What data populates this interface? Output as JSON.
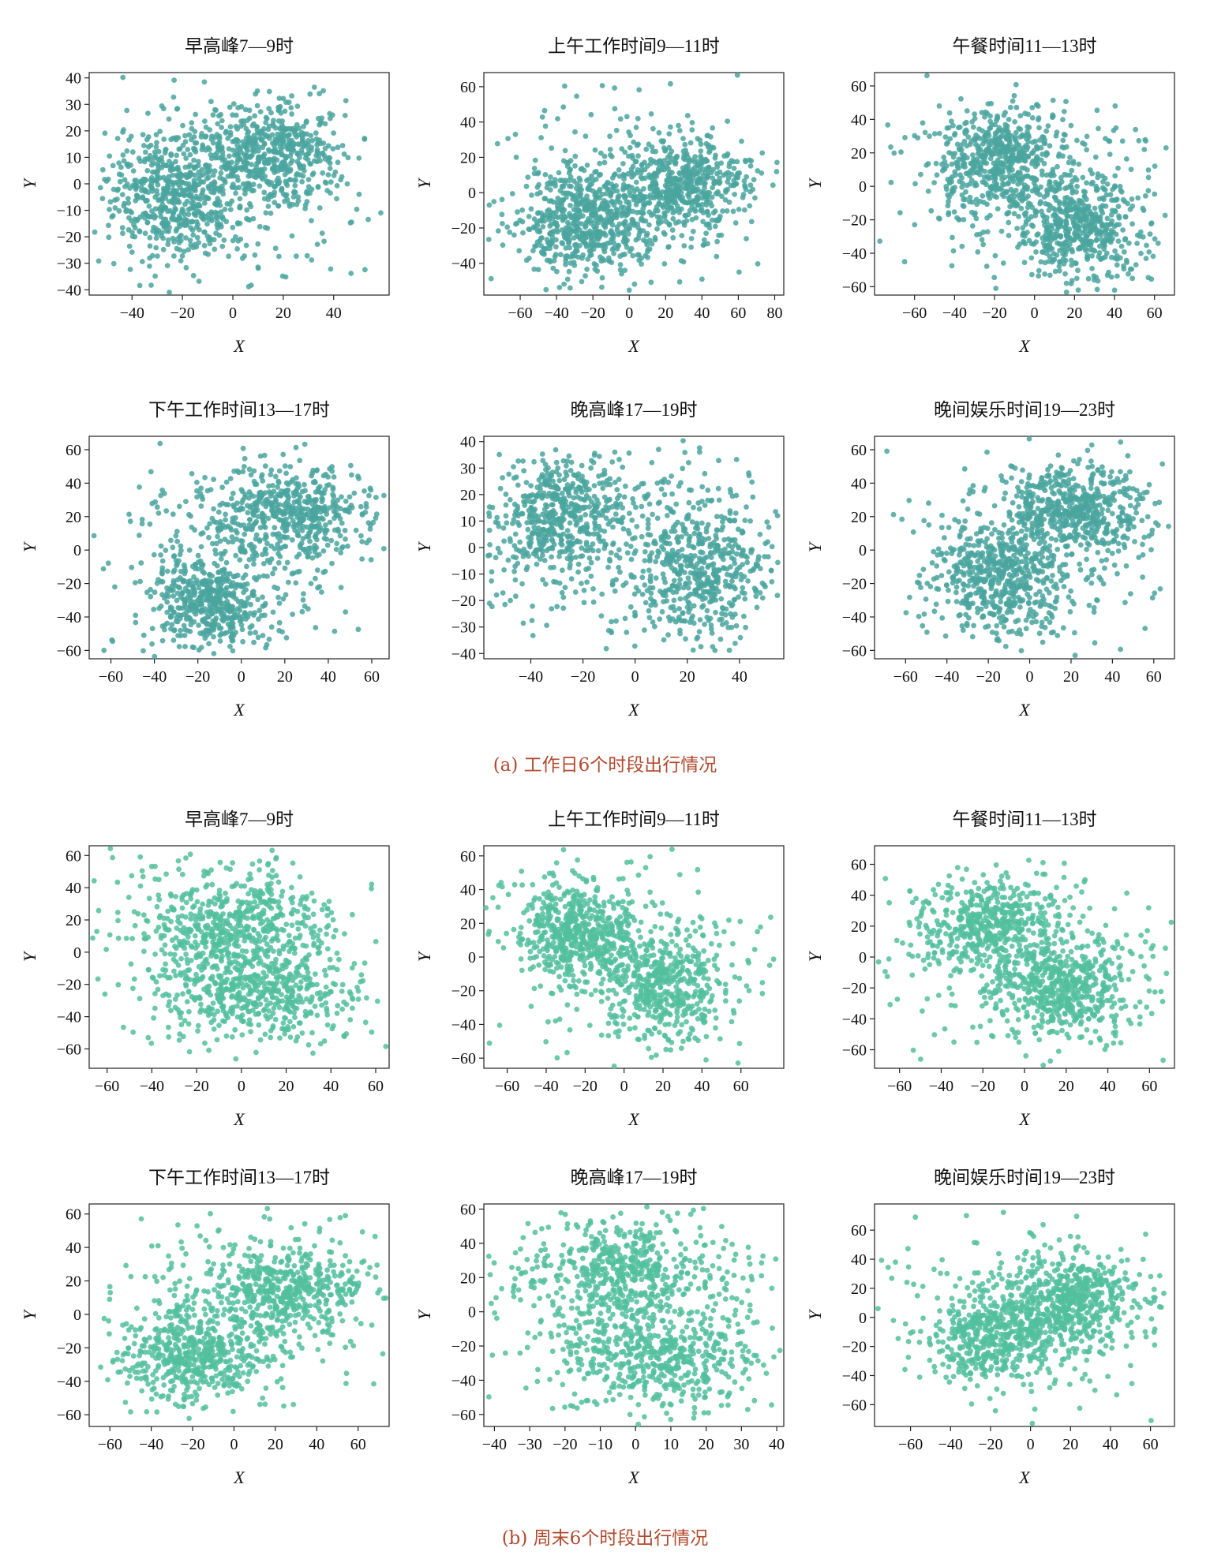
{
  "groups": [
    {
      "caption": "(a) 工作日6个时段出行情况",
      "color": "#4aa59f",
      "panels": [
        {
          "title": "早高峰7—9时",
          "xlabel": "X",
          "ylabel": "Y",
          "xlim": [
            -57,
            62
          ],
          "ylim": [
            -42,
            42
          ],
          "xticks": [
            -40,
            -20,
            0,
            20,
            40
          ],
          "yticks": [
            40,
            30,
            20,
            10,
            0,
            -10,
            -20,
            -30,
            -40
          ],
          "clusters": [
            {
              "cx": -22,
              "cy": -4,
              "sx": 13,
              "sy": 12,
              "n": 520
            },
            {
              "cx": 16,
              "cy": 12,
              "sx": 13,
              "sy": 9,
              "n": 460
            },
            {
              "cx": 0,
              "cy": 0,
              "sx": 28,
              "sy": 19,
              "n": 260
            }
          ]
        },
        {
          "title": "上午工作时间9—11时",
          "xlabel": "X",
          "ylabel": "Y",
          "xlim": [
            -80,
            85
          ],
          "ylim": [
            -58,
            68
          ],
          "xticks": [
            -60,
            -40,
            -20,
            0,
            20,
            40,
            60,
            80
          ],
          "yticks": [
            60,
            40,
            20,
            0,
            -20,
            -40
          ],
          "clusters": [
            {
              "cx": -25,
              "cy": -18,
              "sx": 16,
              "sy": 14,
              "n": 480
            },
            {
              "cx": 30,
              "cy": 5,
              "sx": 17,
              "sy": 13,
              "n": 460
            },
            {
              "cx": 0,
              "cy": 0,
              "sx": 35,
              "sy": 26,
              "n": 300
            }
          ]
        },
        {
          "title": "午餐时间11—13时",
          "xlabel": "X",
          "ylabel": "Y",
          "xlim": [
            -80,
            70
          ],
          "ylim": [
            -65,
            68
          ],
          "xticks": [
            -60,
            -40,
            -20,
            0,
            20,
            40,
            60
          ],
          "yticks": [
            60,
            40,
            20,
            0,
            -20,
            -40,
            -60
          ],
          "clusters": [
            {
              "cx": -18,
              "cy": 15,
              "sx": 16,
              "sy": 15,
              "n": 460
            },
            {
              "cx": 22,
              "cy": -25,
              "sx": 16,
              "sy": 15,
              "n": 480
            },
            {
              "cx": 0,
              "cy": 0,
              "sx": 33,
              "sy": 28,
              "n": 260
            }
          ]
        },
        {
          "title": "下午工作时间13—17时",
          "xlabel": "X",
          "ylabel": "Y",
          "xlim": [
            -70,
            68
          ],
          "ylim": [
            -65,
            68
          ],
          "xticks": [
            -60,
            -40,
            -20,
            0,
            20,
            40,
            60
          ],
          "yticks": [
            60,
            40,
            20,
            0,
            -20,
            -40,
            -60
          ],
          "clusters": [
            {
              "cx": -15,
              "cy": -32,
              "sx": 13,
              "sy": 13,
              "n": 430
            },
            {
              "cx": 22,
              "cy": 22,
              "sx": 18,
              "sy": 13,
              "n": 470
            },
            {
              "cx": 0,
              "cy": 0,
              "sx": 32,
              "sy": 28,
              "n": 260
            }
          ]
        },
        {
          "title": "晚高峰17—19时",
          "xlabel": "X",
          "ylabel": "Y",
          "xlim": [
            -58,
            57
          ],
          "ylim": [
            -42,
            42
          ],
          "xticks": [
            -40,
            -20,
            0,
            20,
            40
          ],
          "yticks": [
            40,
            30,
            20,
            10,
            0,
            -10,
            -20,
            -30,
            -40
          ],
          "clusters": [
            {
              "cx": -28,
              "cy": 12,
              "sx": 13,
              "sy": 11,
              "n": 480
            },
            {
              "cx": 25,
              "cy": -8,
              "sx": 14,
              "sy": 13,
              "n": 480
            },
            {
              "cx": 0,
              "cy": 0,
              "sx": 30,
              "sy": 20,
              "n": 260
            }
          ]
        },
        {
          "title": "晚间娱乐时间19—23时",
          "xlabel": "X",
          "ylabel": "Y",
          "xlim": [
            -75,
            70
          ],
          "ylim": [
            -65,
            68
          ],
          "xticks": [
            -60,
            -40,
            -20,
            0,
            20,
            40,
            60
          ],
          "yticks": [
            60,
            40,
            20,
            0,
            -20,
            -40,
            -60
          ],
          "clusters": [
            {
              "cx": -15,
              "cy": -18,
              "sx": 16,
              "sy": 16,
              "n": 480
            },
            {
              "cx": 22,
              "cy": 25,
              "sx": 17,
              "sy": 13,
              "n": 460
            },
            {
              "cx": 0,
              "cy": 0,
              "sx": 34,
              "sy": 28,
              "n": 260
            }
          ]
        }
      ]
    },
    {
      "caption": "(b) 周末6个时段出行情况",
      "color": "#52c09c",
      "panels": [
        {
          "title": "早高峰7—9时",
          "xlabel": "X",
          "ylabel": "Y",
          "xlim": [
            -68,
            66
          ],
          "ylim": [
            -72,
            66
          ],
          "xticks": [
            -60,
            -40,
            -20,
            0,
            20,
            40,
            60
          ],
          "yticks": [
            60,
            40,
            20,
            0,
            -20,
            -40,
            -60
          ],
          "clusters": [
            {
              "cx": -5,
              "cy": 18,
              "sx": 20,
              "sy": 14,
              "n": 450
            },
            {
              "cx": 8,
              "cy": -25,
              "sx": 20,
              "sy": 14,
              "n": 430
            },
            {
              "cx": 0,
              "cy": 0,
              "sx": 32,
              "sy": 30,
              "n": 260
            }
          ]
        },
        {
          "title": "上午工作时间9—11时",
          "xlabel": "X",
          "ylabel": "Y",
          "xlim": [
            -72,
            82
          ],
          "ylim": [
            -66,
            66
          ],
          "xticks": [
            -60,
            -40,
            -20,
            0,
            20,
            40,
            60
          ],
          "yticks": [
            60,
            40,
            20,
            0,
            -20,
            -40,
            -60
          ],
          "clusters": [
            {
              "cx": -25,
              "cy": 15,
              "sx": 15,
              "sy": 15,
              "n": 470
            },
            {
              "cx": 20,
              "cy": -18,
              "sx": 16,
              "sy": 15,
              "n": 420
            },
            {
              "cx": 0,
              "cy": 0,
              "sx": 34,
              "sy": 30,
              "n": 260
            }
          ]
        },
        {
          "title": "午餐时间11—13时",
          "xlabel": "X",
          "ylabel": "Y",
          "xlim": [
            -72,
            72
          ],
          "ylim": [
            -72,
            72
          ],
          "xticks": [
            -60,
            -40,
            -20,
            0,
            20,
            40,
            60
          ],
          "yticks": [
            60,
            40,
            20,
            0,
            -20,
            -40,
            -60
          ],
          "clusters": [
            {
              "cx": -15,
              "cy": 22,
              "sx": 17,
              "sy": 15,
              "n": 430
            },
            {
              "cx": 18,
              "cy": -20,
              "sx": 16,
              "sy": 15,
              "n": 480
            },
            {
              "cx": 0,
              "cy": 0,
              "sx": 33,
              "sy": 31,
              "n": 260
            }
          ]
        },
        {
          "title": "下午工作时间13—17时",
          "xlabel": "X",
          "ylabel": "Y",
          "xlim": [
            -70,
            75
          ],
          "ylim": [
            -67,
            66
          ],
          "xticks": [
            -60,
            -40,
            -20,
            0,
            20,
            40,
            60
          ],
          "yticks": [
            60,
            40,
            20,
            0,
            -20,
            -40,
            -60
          ],
          "clusters": [
            {
              "cx": -20,
              "cy": -25,
              "sx": 17,
              "sy": 13,
              "n": 470
            },
            {
              "cx": 25,
              "cy": 15,
              "sx": 18,
              "sy": 14,
              "n": 440
            },
            {
              "cx": 0,
              "cy": 0,
              "sx": 35,
              "sy": 29,
              "n": 260
            }
          ]
        },
        {
          "title": "晚高峰17—19时",
          "xlabel": "X",
          "ylabel": "Y",
          "xlim": [
            -43,
            42
          ],
          "ylim": [
            -67,
            63
          ],
          "xticks": [
            -40,
            -30,
            -20,
            -10,
            0,
            10,
            20,
            30,
            40
          ],
          "yticks": [
            60,
            40,
            20,
            0,
            -20,
            -40,
            -60
          ],
          "clusters": [
            {
              "cx": -5,
              "cy": 25,
              "sx": 14,
              "sy": 15,
              "n": 450
            },
            {
              "cx": 8,
              "cy": -28,
              "sx": 14,
              "sy": 15,
              "n": 450
            },
            {
              "cx": 0,
              "cy": 0,
              "sx": 22,
              "sy": 30,
              "n": 270
            }
          ]
        },
        {
          "title": "晚间娱乐时间19—23时",
          "xlabel": "X",
          "ylabel": "Y",
          "xlim": [
            -78,
            72
          ],
          "ylim": [
            -75,
            78
          ],
          "xticks": [
            -60,
            -40,
            -20,
            0,
            20,
            40,
            60
          ],
          "yticks": [
            60,
            40,
            20,
            0,
            -20,
            -40,
            -60
          ],
          "clusters": [
            {
              "cx": -18,
              "cy": -12,
              "sx": 17,
              "sy": 15,
              "n": 440
            },
            {
              "cx": 22,
              "cy": 12,
              "sx": 17,
              "sy": 15,
              "n": 460
            },
            {
              "cx": 0,
              "cy": 0,
              "sx": 34,
              "sy": 33,
              "n": 260
            }
          ]
        }
      ]
    }
  ],
  "chart_data": [
    {
      "type": "scatter",
      "title": "早高峰7—9时",
      "group": "(a) 工作日6个时段出行情况",
      "xlabel": "X",
      "ylabel": "Y",
      "xlim": [
        -57,
        62
      ],
      "ylim": [
        -42,
        42
      ]
    },
    {
      "type": "scatter",
      "title": "上午工作时间9—11时",
      "group": "(a) 工作日6个时段出行情况",
      "xlabel": "X",
      "ylabel": "Y",
      "xlim": [
        -80,
        85
      ],
      "ylim": [
        -58,
        68
      ]
    },
    {
      "type": "scatter",
      "title": "午餐时间11—13时",
      "group": "(a) 工作日6个时段出行情况",
      "xlabel": "X",
      "ylabel": "Y",
      "xlim": [
        -80,
        70
      ],
      "ylim": [
        -65,
        68
      ]
    },
    {
      "type": "scatter",
      "title": "下午工作时间13—17时",
      "group": "(a) 工作日6个时段出行情况",
      "xlabel": "X",
      "ylabel": "Y",
      "xlim": [
        -70,
        68
      ],
      "ylim": [
        -65,
        68
      ]
    },
    {
      "type": "scatter",
      "title": "晚高峰17—19时",
      "group": "(a) 工作日6个时段出行情况",
      "xlabel": "X",
      "ylabel": "Y",
      "xlim": [
        -58,
        57
      ],
      "ylim": [
        -42,
        42
      ]
    },
    {
      "type": "scatter",
      "title": "晚间娱乐时间19—23时",
      "group": "(a) 工作日6个时段出行情况",
      "xlabel": "X",
      "ylabel": "Y",
      "xlim": [
        -75,
        70
      ],
      "ylim": [
        -65,
        68
      ]
    },
    {
      "type": "scatter",
      "title": "早高峰7—9时",
      "group": "(b) 周末6个时段出行情况",
      "xlabel": "X",
      "ylabel": "Y",
      "xlim": [
        -68,
        66
      ],
      "ylim": [
        -72,
        66
      ]
    },
    {
      "type": "scatter",
      "title": "上午工作时间9—11时",
      "group": "(b) 周末6个时段出行情况",
      "xlabel": "X",
      "ylabel": "Y",
      "xlim": [
        -72,
        82
      ],
      "ylim": [
        -66,
        66
      ]
    },
    {
      "type": "scatter",
      "title": "午餐时间11—13时",
      "group": "(b) 周末6个时段出行情况",
      "xlabel": "X",
      "ylabel": "Y",
      "xlim": [
        -72,
        72
      ],
      "ylim": [
        -72,
        72
      ]
    },
    {
      "type": "scatter",
      "title": "下午工作时间13—17时",
      "group": "(b) 周末6个时段出行情况",
      "xlabel": "X",
      "ylabel": "Y",
      "xlim": [
        -70,
        75
      ],
      "ylim": [
        -67,
        66
      ]
    },
    {
      "type": "scatter",
      "title": "晚高峰17—19时",
      "group": "(b) 周末6个时段出行情况",
      "xlabel": "X",
      "ylabel": "Y",
      "xlim": [
        -43,
        42
      ],
      "ylim": [
        -67,
        63
      ]
    },
    {
      "type": "scatter",
      "title": "晚间娱乐时间19—23时",
      "group": "(b) 周末6个时段出行情况",
      "xlabel": "X",
      "ylabel": "Y",
      "xlim": [
        -78,
        72
      ],
      "ylim": [
        -75,
        78
      ]
    }
  ]
}
